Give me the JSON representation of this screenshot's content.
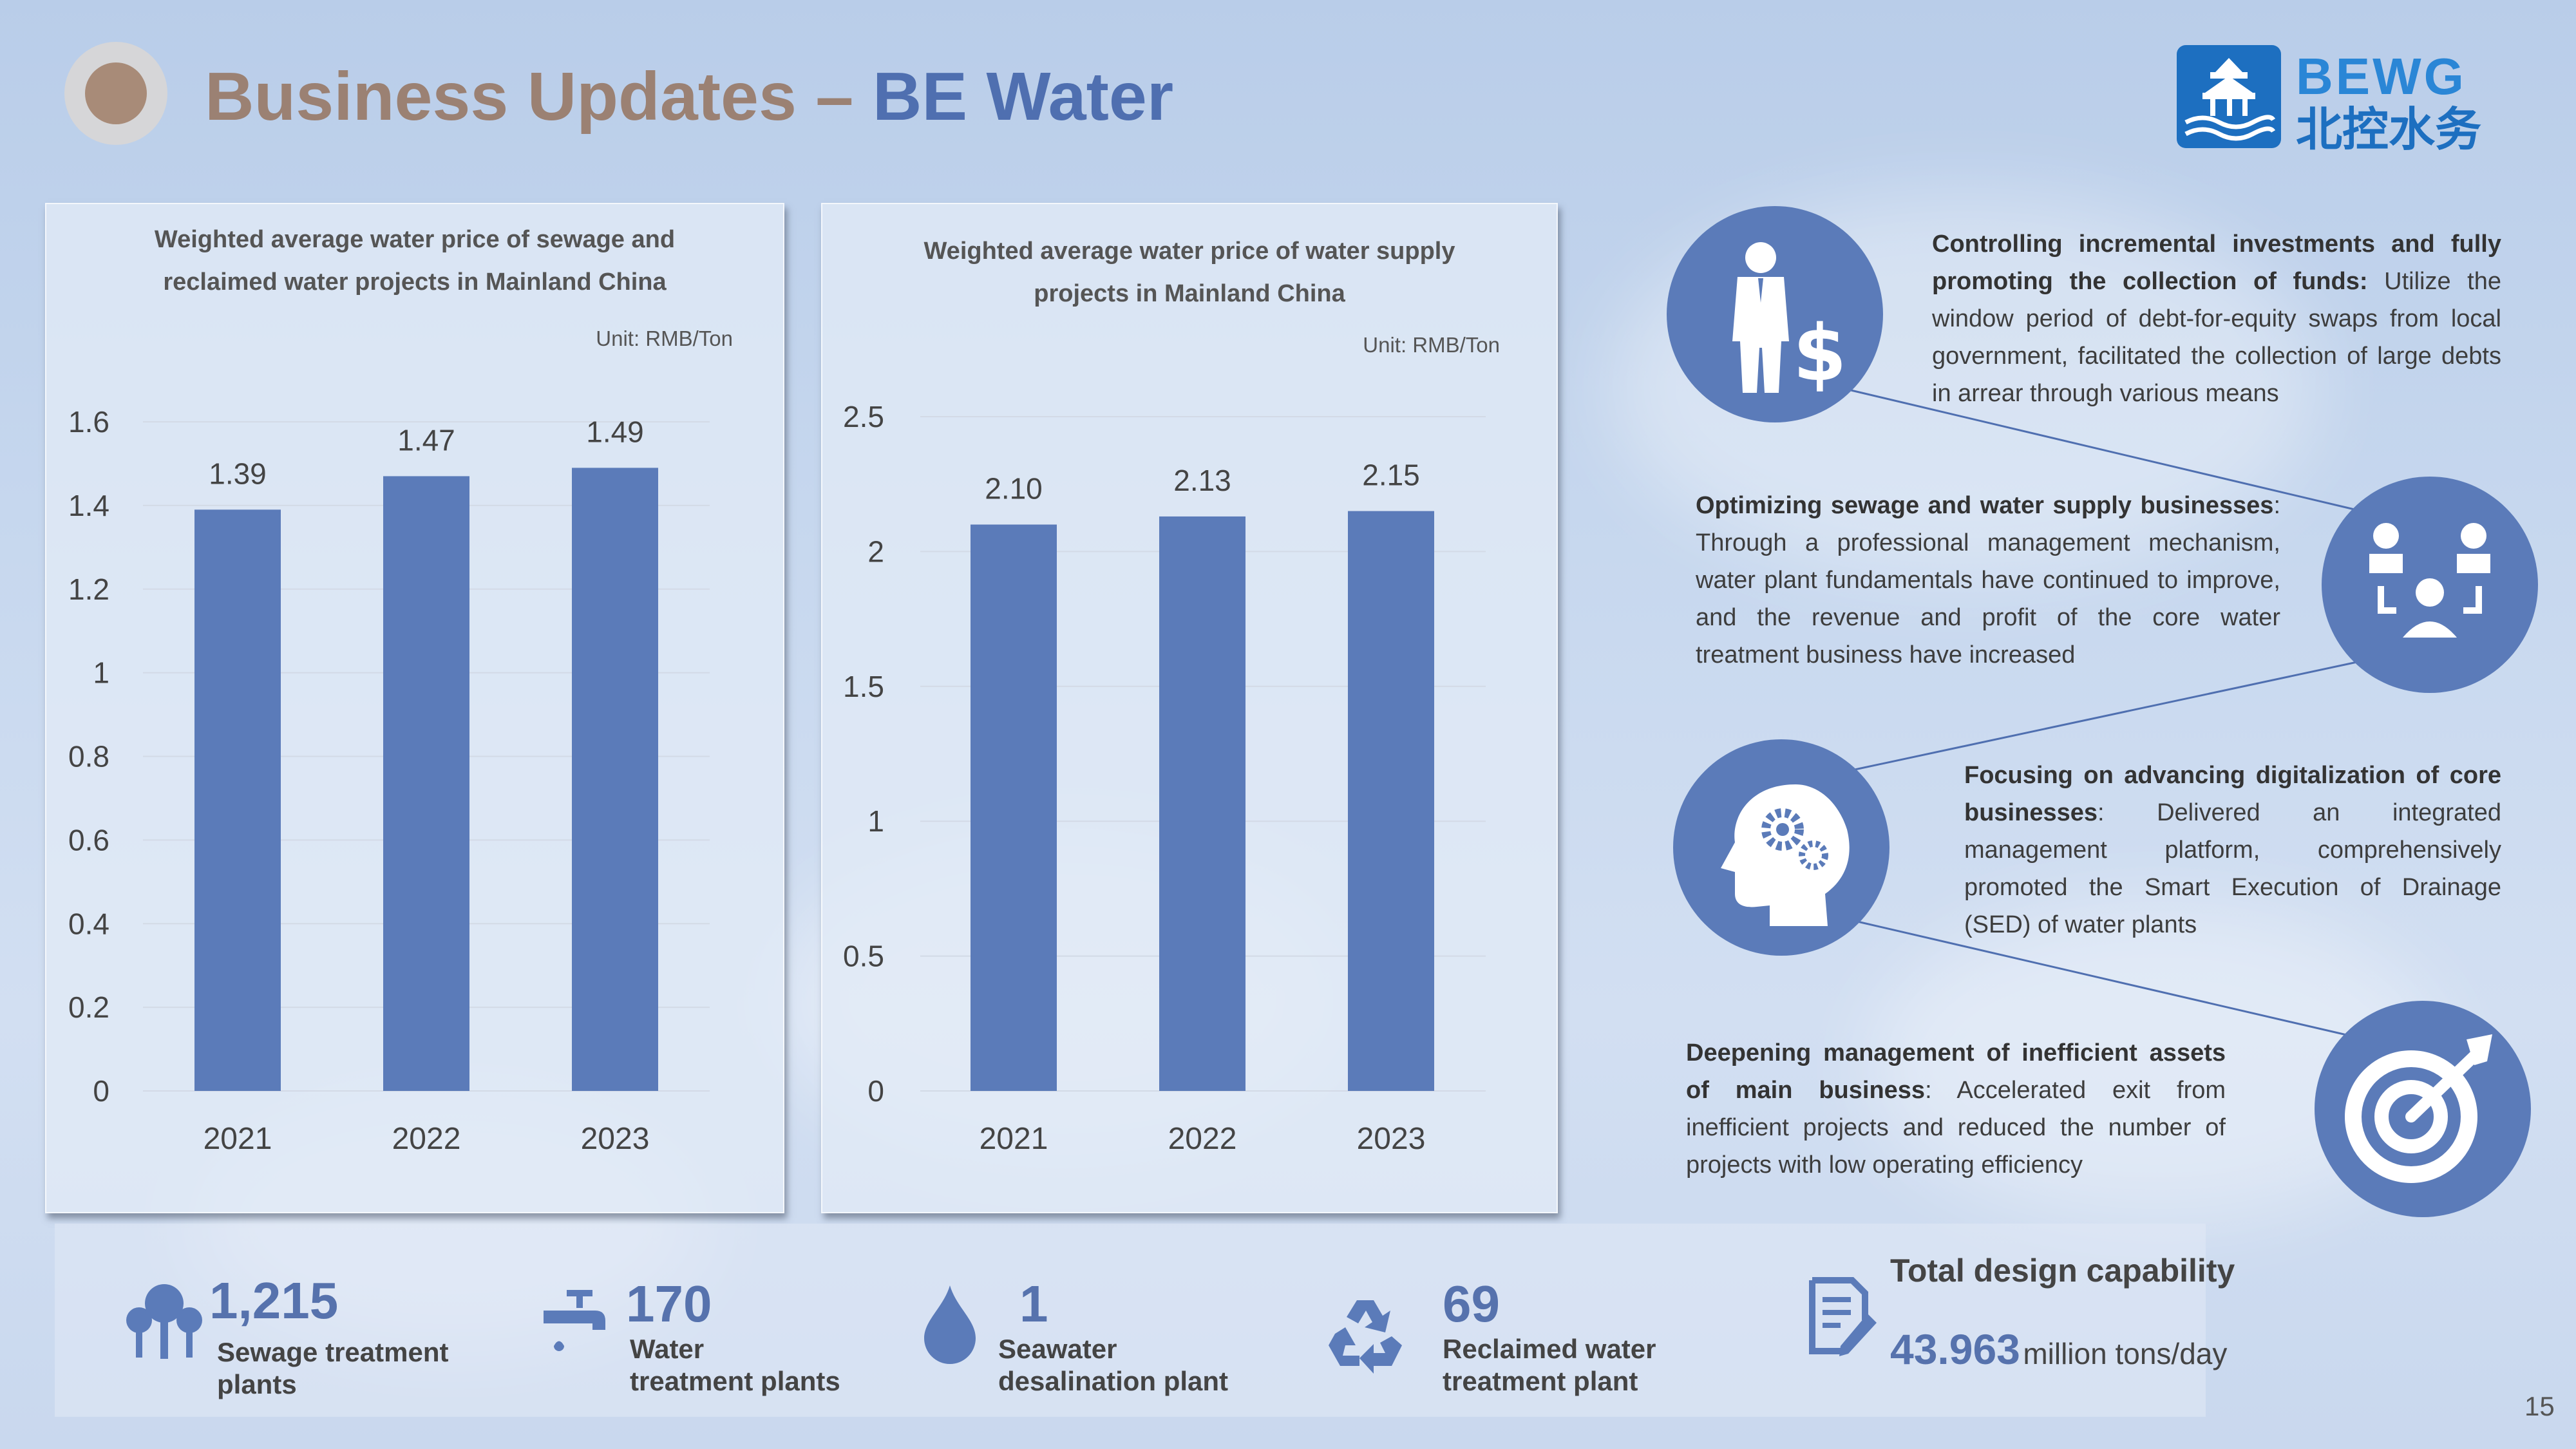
{
  "title": {
    "part1": "Business Updates – ",
    "part2": "BE Water"
  },
  "logo": {
    "en": "BEWG",
    "cn": "北控水务"
  },
  "chart_data": [
    {
      "type": "bar",
      "title": "Weighted average water price of sewage and reclaimed water projects in Mainland China",
      "title_lines": [
        "Weighted average water price of sewage and",
        "reclaimed water projects in Mainland China"
      ],
      "unit": "Unit: RMB/Ton",
      "categories": [
        "2021",
        "2022",
        "2023"
      ],
      "values": [
        1.39,
        1.47,
        1.49
      ],
      "value_labels": [
        "1.39",
        "1.47",
        "1.49"
      ],
      "ylim": [
        0,
        1.6
      ],
      "yticks": [
        "0",
        "0.2",
        "0.4",
        "0.6",
        "0.8",
        "1",
        "1.2",
        "1.4",
        "1.6"
      ],
      "grid": true,
      "color": "#5b7bb9"
    },
    {
      "type": "bar",
      "title": "Weighted average water price of water supply projects in Mainland China",
      "title_lines": [
        "Weighted average water price of water supply",
        "projects in Mainland China"
      ],
      "unit": "Unit: RMB/Ton",
      "categories": [
        "2021",
        "2022",
        "2023"
      ],
      "values": [
        2.1,
        2.13,
        2.15
      ],
      "value_labels": [
        "2.10",
        "2.13",
        "2.15"
      ],
      "ylim": [
        0,
        2.5
      ],
      "yticks": [
        "0",
        "0.5",
        "1",
        "1.5",
        "2",
        "2.5"
      ],
      "grid": true,
      "color": "#5b7bb9"
    }
  ],
  "notes": [
    {
      "icon": "businessman-dollar-icon",
      "bold": "Controlling incremental investments and fully promoting the collection of funds:",
      "text": " Utilize the window period of debt-for-equity swaps from local government,  facilitated the collection of large debts in arrear through various means"
    },
    {
      "icon": "team-meeting-icon",
      "bold": "Optimizing sewage and water supply businesses",
      "text": ": Through a professional management mechanism, water plant fundamentals have continued to improve, and the revenue and profit of the core water treatment business have increased"
    },
    {
      "icon": "head-gears-icon",
      "bold": "Focusing on advancing digitalization of core businesses",
      "text": ":  Delivered an integrated management platform, comprehensively promoted the Smart Execution of Drainage (SED) of water plants"
    },
    {
      "icon": "target-arrow-icon",
      "bold": "Deepening management of inefficient assets of main business",
      "text": ": Accelerated exit from inefficient projects and reduced the number of projects with low operating efficiency"
    }
  ],
  "stats": [
    {
      "icon": "trees-icon",
      "value": "1,215",
      "label1": "Sewage treatment",
      "label2": "plants"
    },
    {
      "icon": "faucet-icon",
      "value": "170",
      "label1": "Water",
      "label2": "treatment plants"
    },
    {
      "icon": "water-drop-icon",
      "value": "1",
      "label1": "Seawater",
      "label2": "desalination plant"
    },
    {
      "icon": "recycle-icon",
      "value": "69",
      "label1": "Reclaimed water",
      "label2": "treatment plant"
    }
  ],
  "capacity": {
    "icon": "document-pen-icon",
    "title": "Total design capability",
    "value": "43.963",
    "unit": "million tons/day"
  },
  "page_number": "15",
  "colors": {
    "accent": "#5b7bb9",
    "title_brown": "#9b8173",
    "title_blue": "#4f6fb0"
  }
}
